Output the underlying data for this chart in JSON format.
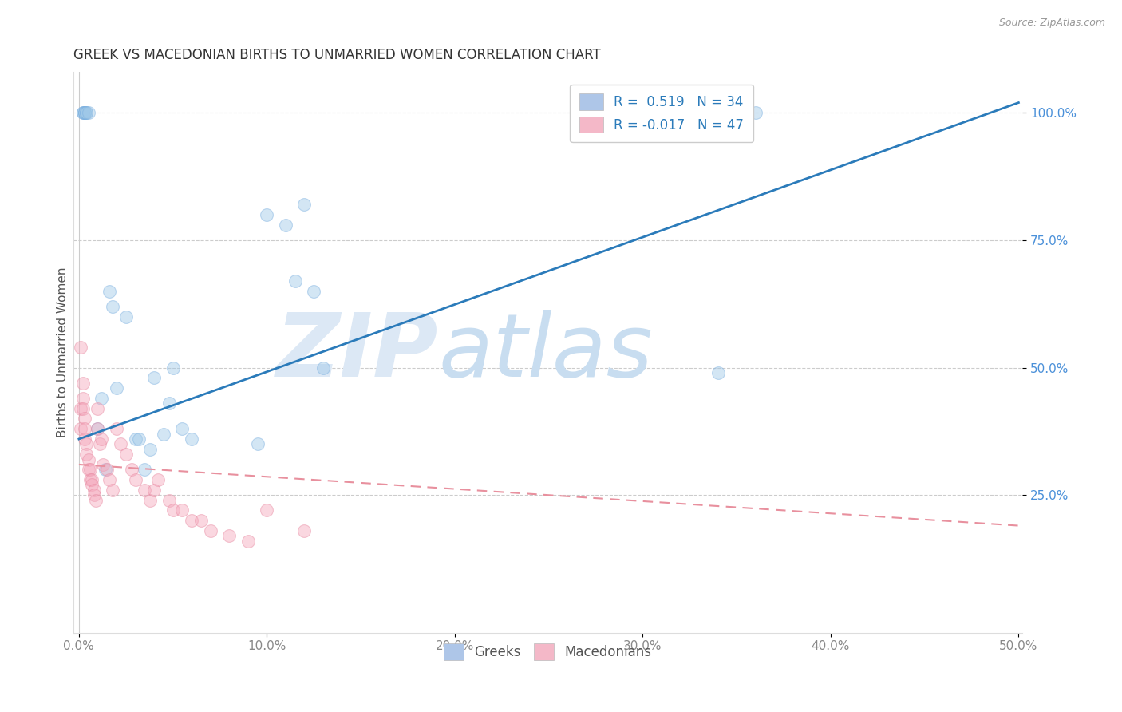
{
  "title": "GREEK VS MACEDONIAN BIRTHS TO UNMARRIED WOMEN CORRELATION CHART",
  "source": "Source: ZipAtlas.com",
  "ylabel": "Births to Unmarried Women",
  "xlim": [
    -0.003,
    0.502
  ],
  "ylim": [
    -0.02,
    1.08
  ],
  "xticks": [
    0.0,
    0.1,
    0.2,
    0.3,
    0.4,
    0.5
  ],
  "xticklabels": [
    "0.0%",
    "10.0%",
    "20.0%",
    "30.0%",
    "40.0%",
    "50.0%"
  ],
  "yticks": [
    0.25,
    0.5,
    0.75,
    1.0
  ],
  "yticklabels": [
    "25.0%",
    "50.0%",
    "75.0%",
    "100.0%"
  ],
  "grid_color": "#cccccc",
  "background_color": "#ffffff",
  "legend_label1": "R =  0.519   N = 34",
  "legend_label2": "R = -0.017   N = 47",
  "legend_color1": "#aec6e8",
  "legend_color2": "#f4b8c8",
  "watermark_zip": "ZIP",
  "watermark_atlas": "atlas",
  "watermark_color": "#dce8f5",
  "greek_color": "#9fc8e8",
  "greek_edge_color": "#7aafe0",
  "macedonian_color": "#f4a8bc",
  "macedonian_edge_color": "#e888a0",
  "trend_greek_color": "#2b7bba",
  "trend_macedonian_color": "#e8909e",
  "greek_points_x": [
    0.002,
    0.002,
    0.003,
    0.003,
    0.003,
    0.004,
    0.004,
    0.005,
    0.01,
    0.012,
    0.014,
    0.016,
    0.018,
    0.02,
    0.025,
    0.03,
    0.032,
    0.035,
    0.038,
    0.04,
    0.045,
    0.048,
    0.05,
    0.055,
    0.06,
    0.095,
    0.1,
    0.11,
    0.115,
    0.12,
    0.125,
    0.13,
    0.34,
    0.36
  ],
  "greek_points_y": [
    1.0,
    1.0,
    1.0,
    1.0,
    1.0,
    1.0,
    1.0,
    1.0,
    0.38,
    0.44,
    0.3,
    0.65,
    0.62,
    0.46,
    0.6,
    0.36,
    0.36,
    0.3,
    0.34,
    0.48,
    0.37,
    0.43,
    0.5,
    0.38,
    0.36,
    0.35,
    0.8,
    0.78,
    0.67,
    0.82,
    0.65,
    0.5,
    0.49,
    1.0
  ],
  "macedonian_points_x": [
    0.001,
    0.001,
    0.001,
    0.002,
    0.002,
    0.002,
    0.003,
    0.003,
    0.003,
    0.004,
    0.004,
    0.005,
    0.005,
    0.006,
    0.006,
    0.007,
    0.007,
    0.008,
    0.008,
    0.009,
    0.01,
    0.01,
    0.011,
    0.012,
    0.013,
    0.015,
    0.016,
    0.018,
    0.02,
    0.022,
    0.025,
    0.028,
    0.03,
    0.035,
    0.038,
    0.04,
    0.042,
    0.048,
    0.05,
    0.055,
    0.06,
    0.065,
    0.07,
    0.08,
    0.09,
    0.1,
    0.12
  ],
  "macedonian_points_y": [
    0.54,
    0.42,
    0.38,
    0.47,
    0.44,
    0.42,
    0.4,
    0.38,
    0.36,
    0.35,
    0.33,
    0.32,
    0.3,
    0.3,
    0.28,
    0.28,
    0.27,
    0.26,
    0.25,
    0.24,
    0.42,
    0.38,
    0.35,
    0.36,
    0.31,
    0.3,
    0.28,
    0.26,
    0.38,
    0.35,
    0.33,
    0.3,
    0.28,
    0.26,
    0.24,
    0.26,
    0.28,
    0.24,
    0.22,
    0.22,
    0.2,
    0.2,
    0.18,
    0.17,
    0.16,
    0.22,
    0.18
  ],
  "greek_trend_x": [
    0.0,
    0.5
  ],
  "greek_trend_y": [
    0.36,
    1.02
  ],
  "macedonian_trend_x": [
    0.0,
    0.5
  ],
  "macedonian_trend_y": [
    0.31,
    0.19
  ],
  "title_fontsize": 12,
  "axis_fontsize": 11,
  "tick_fontsize": 11,
  "legend_fontsize": 12,
  "marker_size": 130,
  "marker_alpha": 0.45
}
